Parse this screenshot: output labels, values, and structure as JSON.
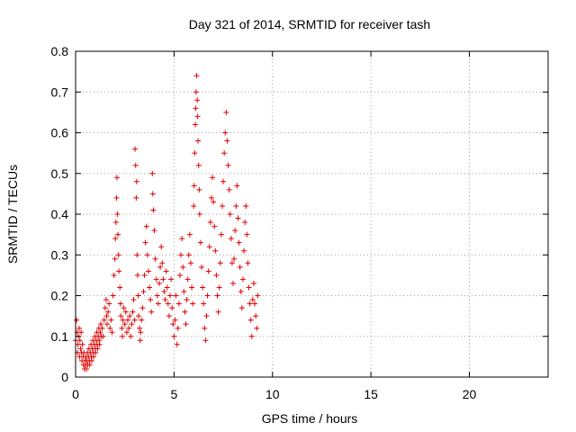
{
  "chart_data": {
    "type": "scatter",
    "title": "Day 321 of 2014, SRMTID for receiver tash",
    "xlabel": "GPS time / hours",
    "ylabel": "SRMTID / TECUs",
    "xlim": [
      0,
      24
    ],
    "ylim": [
      0,
      0.8
    ],
    "xticks": [
      0,
      5,
      10,
      15,
      20
    ],
    "yticks": [
      0,
      0.1,
      0.2,
      0.3,
      0.4,
      0.5,
      0.6,
      0.7,
      0.8
    ],
    "xtick_labels": [
      "0",
      "5",
      "10",
      "15",
      "20"
    ],
    "ytick_labels": [
      "0",
      "0.1",
      "0.2",
      "0.3",
      "0.4",
      "0.5",
      "0.6",
      "0.7",
      "0.8"
    ],
    "grid": true,
    "marker": "+",
    "marker_color": "#e00000",
    "series": [
      {
        "name": "SRMTID",
        "points": [
          [
            0.0,
            0.09
          ],
          [
            0.05,
            0.14
          ],
          [
            0.08,
            0.11
          ],
          [
            0.1,
            0.06
          ],
          [
            0.12,
            0.08
          ],
          [
            0.15,
            0.1
          ],
          [
            0.18,
            0.12
          ],
          [
            0.2,
            0.05
          ],
          [
            0.22,
            0.09
          ],
          [
            0.25,
            0.07
          ],
          [
            0.28,
            0.11
          ],
          [
            0.3,
            0.06
          ],
          [
            0.32,
            0.04
          ],
          [
            0.35,
            0.08
          ],
          [
            0.38,
            0.05
          ],
          [
            0.4,
            0.03
          ],
          [
            0.42,
            0.06
          ],
          [
            0.45,
            0.02
          ],
          [
            0.48,
            0.04
          ],
          [
            0.5,
            0.03
          ],
          [
            0.52,
            0.05
          ],
          [
            0.55,
            0.02
          ],
          [
            0.58,
            0.04
          ],
          [
            0.6,
            0.06
          ],
          [
            0.62,
            0.03
          ],
          [
            0.65,
            0.05
          ],
          [
            0.68,
            0.07
          ],
          [
            0.7,
            0.04
          ],
          [
            0.72,
            0.03
          ],
          [
            0.75,
            0.06
          ],
          [
            0.78,
            0.08
          ],
          [
            0.8,
            0.05
          ],
          [
            0.82,
            0.04
          ],
          [
            0.85,
            0.07
          ],
          [
            0.88,
            0.09
          ],
          [
            0.9,
            0.06
          ],
          [
            0.92,
            0.05
          ],
          [
            0.95,
            0.08
          ],
          [
            0.98,
            0.1
          ],
          [
            1.0,
            0.07
          ],
          [
            1.02,
            0.06
          ],
          [
            1.05,
            0.09
          ],
          [
            1.08,
            0.11
          ],
          [
            1.1,
            0.08
          ],
          [
            1.12,
            0.07
          ],
          [
            1.15,
            0.1
          ],
          [
            1.18,
            0.12
          ],
          [
            1.2,
            0.09
          ],
          [
            1.22,
            0.08
          ],
          [
            1.25,
            0.11
          ],
          [
            1.28,
            0.13
          ],
          [
            1.3,
            0.1
          ],
          [
            1.35,
            0.12
          ],
          [
            1.4,
            0.1
          ],
          [
            1.45,
            0.14
          ],
          [
            1.5,
            0.17
          ],
          [
            1.55,
            0.19
          ],
          [
            1.58,
            0.15
          ],
          [
            1.6,
            0.13
          ],
          [
            1.65,
            0.16
          ],
          [
            1.7,
            0.18
          ],
          [
            1.75,
            0.12
          ],
          [
            1.8,
            0.14
          ],
          [
            1.85,
            0.11
          ],
          [
            1.9,
            0.2
          ],
          [
            1.95,
            0.25
          ],
          [
            2.0,
            0.29
          ],
          [
            2.02,
            0.34
          ],
          [
            2.05,
            0.38
          ],
          [
            2.08,
            0.44
          ],
          [
            2.1,
            0.49
          ],
          [
            2.12,
            0.4
          ],
          [
            2.15,
            0.35
          ],
          [
            2.18,
            0.3
          ],
          [
            2.2,
            0.26
          ],
          [
            2.25,
            0.22
          ],
          [
            2.28,
            0.18
          ],
          [
            2.3,
            0.15
          ],
          [
            2.35,
            0.12
          ],
          [
            2.38,
            0.1
          ],
          [
            2.4,
            0.14
          ],
          [
            2.45,
            0.17
          ],
          [
            2.5,
            0.13
          ],
          [
            2.55,
            0.16
          ],
          [
            2.6,
            0.11
          ],
          [
            2.65,
            0.14
          ],
          [
            2.7,
            0.12
          ],
          [
            2.75,
            0.15
          ],
          [
            2.8,
            0.1
          ],
          [
            2.85,
            0.13
          ],
          [
            2.9,
            0.16
          ],
          [
            2.95,
            0.19
          ],
          [
            3.0,
            0.14
          ],
          [
            3.02,
            0.56
          ],
          [
            3.05,
            0.52
          ],
          [
            3.08,
            0.44
          ],
          [
            3.1,
            0.48
          ],
          [
            3.12,
            0.3
          ],
          [
            3.15,
            0.25
          ],
          [
            3.18,
            0.2
          ],
          [
            3.2,
            0.15
          ],
          [
            3.25,
            0.12
          ],
          [
            3.28,
            0.09
          ],
          [
            3.3,
            0.11
          ],
          [
            3.35,
            0.14
          ],
          [
            3.4,
            0.17
          ],
          [
            3.45,
            0.21
          ],
          [
            3.5,
            0.25
          ],
          [
            3.55,
            0.33
          ],
          [
            3.6,
            0.37
          ],
          [
            3.65,
            0.3
          ],
          [
            3.7,
            0.26
          ],
          [
            3.75,
            0.22
          ],
          [
            3.8,
            0.19
          ],
          [
            3.85,
            0.16
          ],
          [
            3.9,
            0.5
          ],
          [
            3.92,
            0.45
          ],
          [
            3.95,
            0.41
          ],
          [
            4.0,
            0.36
          ],
          [
            4.05,
            0.29
          ],
          [
            4.1,
            0.24
          ],
          [
            4.15,
            0.2
          ],
          [
            4.2,
            0.18
          ],
          [
            4.25,
            0.23
          ],
          [
            4.3,
            0.27
          ],
          [
            4.35,
            0.32
          ],
          [
            4.4,
            0.28
          ],
          [
            4.45,
            0.24
          ],
          [
            4.5,
            0.21
          ],
          [
            4.55,
            0.19
          ],
          [
            4.6,
            0.26
          ],
          [
            4.65,
            0.22
          ],
          [
            4.7,
            0.18
          ],
          [
            4.75,
            0.15
          ],
          [
            4.8,
            0.2
          ],
          [
            4.85,
            0.24
          ],
          [
            4.9,
            0.17
          ],
          [
            4.95,
            0.13
          ],
          [
            5.0,
            0.1
          ],
          [
            5.05,
            0.14
          ],
          [
            5.1,
            0.2
          ],
          [
            5.15,
            0.08
          ],
          [
            5.2,
            0.12
          ],
          [
            5.25,
            0.18
          ],
          [
            5.3,
            0.25
          ],
          [
            5.35,
            0.3
          ],
          [
            5.4,
            0.34
          ],
          [
            5.45,
            0.27
          ],
          [
            5.5,
            0.21
          ],
          [
            5.55,
            0.16
          ],
          [
            5.6,
            0.13
          ],
          [
            5.65,
            0.19
          ],
          [
            5.7,
            0.24
          ],
          [
            5.75,
            0.3
          ],
          [
            5.8,
            0.35
          ],
          [
            5.85,
            0.28
          ],
          [
            5.9,
            0.22
          ],
          [
            5.95,
            0.18
          ],
          [
            6.0,
            0.42
          ],
          [
            6.02,
            0.47
          ],
          [
            6.05,
            0.55
          ],
          [
            6.08,
            0.62
          ],
          [
            6.1,
            0.66
          ],
          [
            6.12,
            0.7
          ],
          [
            6.15,
            0.74
          ],
          [
            6.18,
            0.68
          ],
          [
            6.2,
            0.64
          ],
          [
            6.22,
            0.58
          ],
          [
            6.25,
            0.52
          ],
          [
            6.28,
            0.46
          ],
          [
            6.3,
            0.4
          ],
          [
            6.35,
            0.33
          ],
          [
            6.4,
            0.27
          ],
          [
            6.45,
            0.22
          ],
          [
            6.5,
            0.18
          ],
          [
            6.55,
            0.12
          ],
          [
            6.6,
            0.09
          ],
          [
            6.65,
            0.15
          ],
          [
            6.7,
            0.2
          ],
          [
            6.75,
            0.26
          ],
          [
            6.8,
            0.32
          ],
          [
            6.85,
            0.38
          ],
          [
            6.9,
            0.44
          ],
          [
            6.95,
            0.49
          ],
          [
            7.0,
            0.43
          ],
          [
            7.05,
            0.37
          ],
          [
            7.1,
            0.31
          ],
          [
            7.15,
            0.25
          ],
          [
            7.2,
            0.2
          ],
          [
            7.25,
            0.16
          ],
          [
            7.3,
            0.22
          ],
          [
            7.35,
            0.28
          ],
          [
            7.4,
            0.35
          ],
          [
            7.45,
            0.42
          ],
          [
            7.5,
            0.48
          ],
          [
            7.55,
            0.55
          ],
          [
            7.6,
            0.6
          ],
          [
            7.65,
            0.65
          ],
          [
            7.7,
            0.58
          ],
          [
            7.75,
            0.52
          ],
          [
            7.8,
            0.46
          ],
          [
            7.85,
            0.4
          ],
          [
            7.9,
            0.34
          ],
          [
            7.95,
            0.28
          ],
          [
            8.0,
            0.23
          ],
          [
            8.05,
            0.29
          ],
          [
            8.1,
            0.36
          ],
          [
            8.15,
            0.42
          ],
          [
            8.2,
            0.47
          ],
          [
            8.25,
            0.39
          ],
          [
            8.3,
            0.33
          ],
          [
            8.35,
            0.27
          ],
          [
            8.4,
            0.21
          ],
          [
            8.45,
            0.17
          ],
          [
            8.5,
            0.24
          ],
          [
            8.55,
            0.31
          ],
          [
            8.6,
            0.38
          ],
          [
            8.65,
            0.42
          ],
          [
            8.7,
            0.35
          ],
          [
            8.75,
            0.28
          ],
          [
            8.8,
            0.22
          ],
          [
            8.85,
            0.18
          ],
          [
            8.9,
            0.14
          ],
          [
            8.95,
            0.1
          ],
          [
            9.0,
            0.19
          ],
          [
            9.05,
            0.23
          ],
          [
            9.1,
            0.18
          ],
          [
            9.15,
            0.15
          ],
          [
            9.2,
            0.12
          ],
          [
            9.25,
            0.2
          ]
        ]
      }
    ]
  }
}
